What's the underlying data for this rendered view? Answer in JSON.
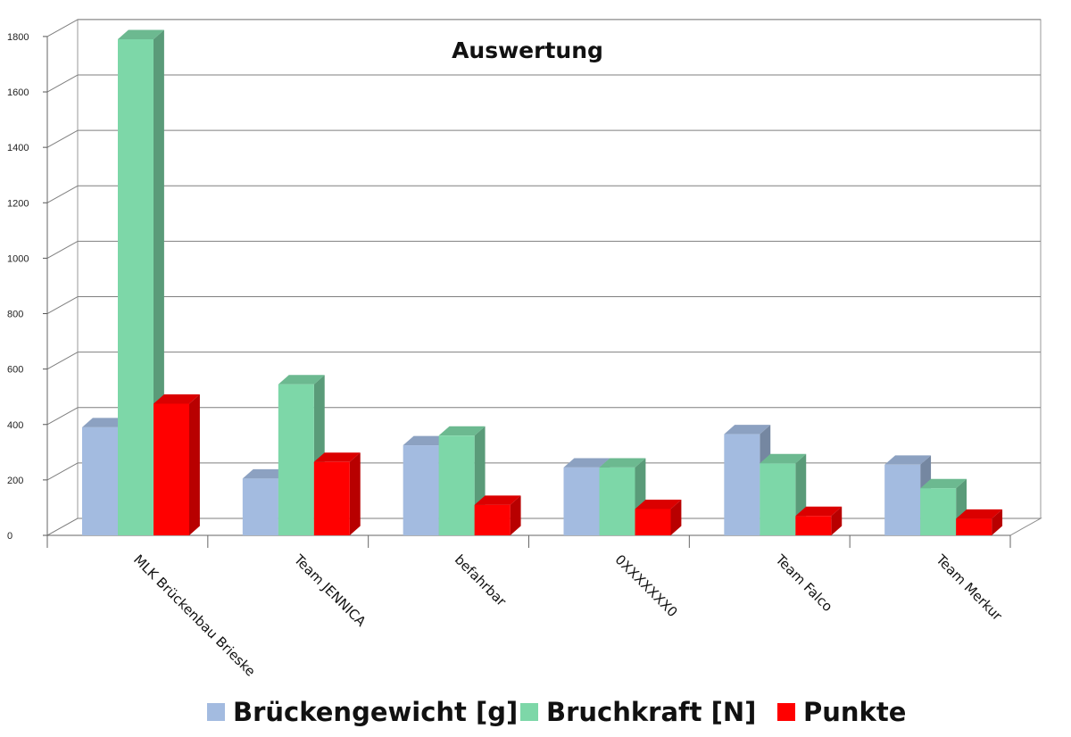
{
  "chart_data": {
    "type": "bar",
    "title": "Auswertung",
    "categories": [
      "MLK Brückenbau Brieske",
      "Team JENNICA",
      "befahrbar",
      "0XXXXXXX0",
      "Team Falco",
      "Team Merkur"
    ],
    "series": [
      {
        "name": "Brückengewicht [g]",
        "values": [
          390,
          205,
          325,
          245,
          365,
          255
        ],
        "color": "#a3bbe0"
      },
      {
        "name": "Bruchkraft [N]",
        "values": [
          1790,
          545,
          360,
          245,
          260,
          170
        ],
        "color": "#7dd7a8"
      },
      {
        "name": "Punkte",
        "values": [
          475,
          265,
          110,
          95,
          70,
          60
        ],
        "color": "#ff0000"
      }
    ],
    "y_ticks": [
      0,
      200,
      400,
      600,
      800,
      1000,
      1200,
      1400,
      1600,
      1800
    ],
    "ylim": [
      0,
      1800
    ],
    "xlabel": "",
    "ylabel": "",
    "grid": true,
    "legend": "bottom"
  }
}
